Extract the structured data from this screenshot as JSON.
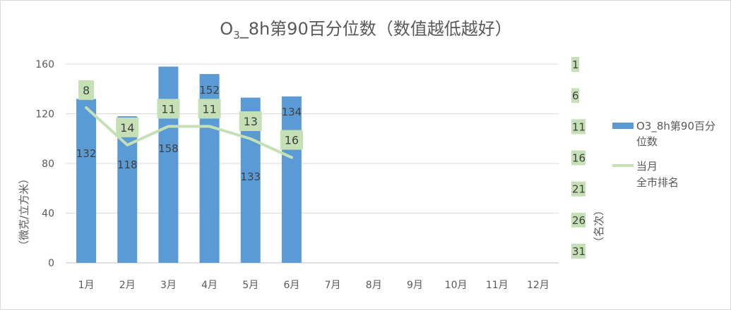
{
  "chart_data": {
    "type": "bar+line",
    "title_main": "O",
    "title_sub": "3",
    "title_rest": "_8h第90百分位数（数值越低越好）",
    "categories": [
      "1月",
      "2月",
      "3月",
      "4月",
      "5月",
      "6月",
      "7月",
      "8月",
      "9月",
      "10月",
      "11月",
      "12月"
    ],
    "series": [
      {
        "name": "O3_8h第90百分位数",
        "legend_lines": [
          "O3_8h第90百分",
          "位数"
        ],
        "type": "bar",
        "axis": "left",
        "color": "#5b9bd5",
        "values": [
          132,
          118,
          158,
          152,
          133,
          134,
          null,
          null,
          null,
          null,
          null,
          null
        ]
      },
      {
        "name": "当月全市排名",
        "legend_lines": [
          "当月",
          "全市排名"
        ],
        "type": "line",
        "axis": "right",
        "color": "#c5e0b4",
        "values": [
          8,
          14,
          11,
          11,
          13,
          16,
          null,
          null,
          null,
          null,
          null,
          null
        ]
      }
    ],
    "ylabel": "（微克/立方米）",
    "y2label": "（名次）",
    "ylim": [
      0,
      160
    ],
    "yticks": [
      0,
      40,
      80,
      120,
      160
    ],
    "y2lim": [
      1,
      31
    ],
    "y2_reversed": true,
    "y2ticks": [
      1,
      6,
      11,
      16,
      21,
      26,
      31
    ],
    "grid": true,
    "legend": "right"
  }
}
